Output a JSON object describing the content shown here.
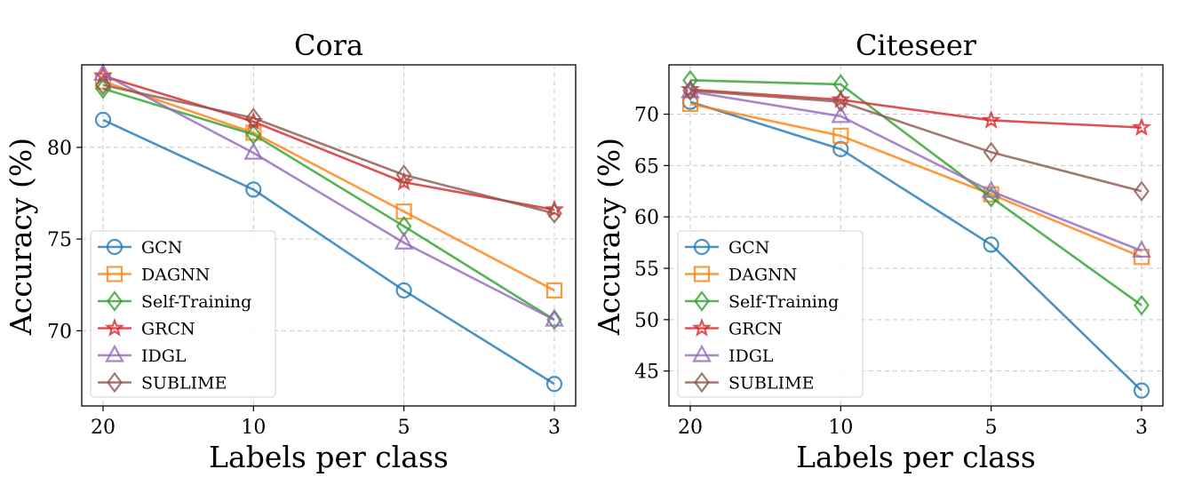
{
  "chart_data": [
    {
      "type": "line",
      "title": "Cora",
      "xlabel": "Labels per class",
      "ylabel": "Accuracy (%)",
      "categories": [
        "20",
        "10",
        "5",
        "3"
      ],
      "ylim": [
        65.9,
        84.5
      ],
      "yticks": [
        70,
        75,
        80
      ],
      "grid": true,
      "legend": "lower-left",
      "series": [
        {
          "name": "GCN",
          "marker": "circle",
          "color": "#1f77b4",
          "values": [
            81.5,
            77.7,
            72.2,
            67.1
          ]
        },
        {
          "name": "DAGNN",
          "marker": "square",
          "color": "#ff7f0e",
          "values": [
            83.6,
            80.8,
            76.5,
            72.2
          ]
        },
        {
          "name": "Self-Training",
          "marker": "diamond",
          "color": "#2ca02c",
          "values": [
            83.2,
            80.7,
            75.7,
            70.6
          ]
        },
        {
          "name": "GRCN",
          "marker": "star",
          "color": "#d62728",
          "values": [
            83.9,
            81.4,
            78.1,
            76.6
          ]
        },
        {
          "name": "IDGL",
          "marker": "triangle",
          "color": "#9467bd",
          "values": [
            84.0,
            79.7,
            74.8,
            70.6
          ]
        },
        {
          "name": "SUBLIME",
          "marker": "diamond",
          "color": "#8c564b",
          "values": [
            83.4,
            81.6,
            78.5,
            76.4
          ]
        }
      ]
    },
    {
      "type": "line",
      "title": "Citeseer",
      "xlabel": "Labels per class",
      "ylabel": "Accuracy (%)",
      "categories": [
        "20",
        "10",
        "5",
        "3"
      ],
      "ylim": [
        41.6,
        74.8
      ],
      "yticks": [
        45,
        50,
        55,
        60,
        65,
        70
      ],
      "grid": true,
      "legend": "lower-left",
      "series": [
        {
          "name": "GCN",
          "marker": "circle",
          "color": "#1f77b4",
          "values": [
            71.2,
            66.6,
            57.3,
            43.1
          ]
        },
        {
          "name": "DAGNN",
          "marker": "square",
          "color": "#ff7f0e",
          "values": [
            71.0,
            67.9,
            62.2,
            56.1
          ]
        },
        {
          "name": "Self-Training",
          "marker": "diamond",
          "color": "#2ca02c",
          "values": [
            73.3,
            72.9,
            61.9,
            51.4
          ]
        },
        {
          "name": "GRCN",
          "marker": "star",
          "color": "#d62728",
          "values": [
            72.4,
            71.4,
            69.4,
            68.7
          ]
        },
        {
          "name": "IDGL",
          "marker": "triangle",
          "color": "#9467bd",
          "values": [
            72.2,
            69.8,
            62.5,
            56.7
          ]
        },
        {
          "name": "SUBLIME",
          "marker": "diamond",
          "color": "#8c564b",
          "values": [
            72.3,
            71.2,
            66.3,
            62.5
          ]
        }
      ]
    }
  ]
}
